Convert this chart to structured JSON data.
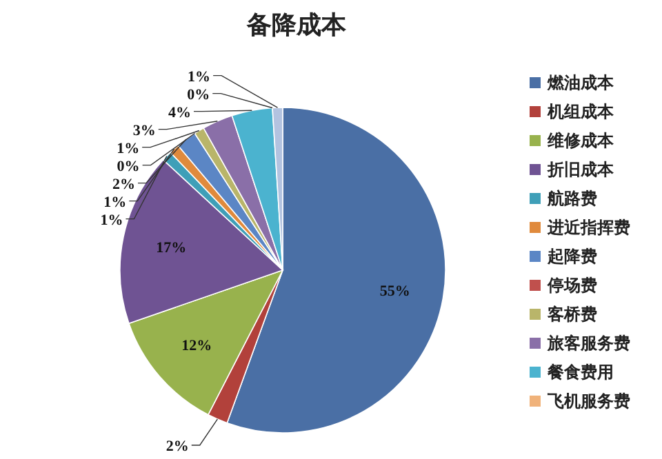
{
  "chart_data": {
    "type": "pie",
    "title": "备降成本",
    "categories": [
      "燃油成本",
      "机组成本",
      "维修成本",
      "折旧成本",
      "航路费",
      "进近指挥费",
      "起降费",
      "停场费",
      "客桥费",
      "旅客服务费",
      "餐食费用",
      "飞机服务费",
      null
    ],
    "values": [
      55,
      2,
      12,
      17,
      1,
      1,
      2,
      0,
      1,
      3,
      4,
      0,
      1
    ],
    "value_labels": [
      "55%",
      "2%",
      "12%",
      "17%",
      "1%",
      "1%",
      "2%",
      "0%",
      "1%",
      "3%",
      "4%",
      "0%",
      "1%"
    ],
    "colors": [
      "#4a6fa5",
      "#b2413b",
      "#98b24d",
      "#6f5393",
      "#3f9fb8",
      "#e08a3c",
      "#5b86c5",
      "#c0504d",
      "#b9b56a",
      "#8a6fa8",
      "#4bb3cf",
      "#f0b27a",
      "#b3c3e0"
    ],
    "legend": "right"
  }
}
